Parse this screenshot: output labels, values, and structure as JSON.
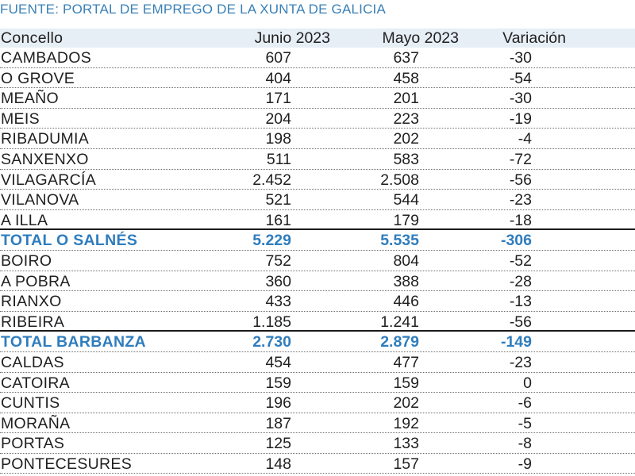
{
  "source": "FUENTE: PORTAL DE EMPREGO DE LA XUNTA DE GALICIA",
  "table": {
    "headers": {
      "name": "Concello",
      "jun": "Junio 2023",
      "may": "Mayo 2023",
      "var": "Variación"
    },
    "rows": [
      {
        "name": "CAMBADOS",
        "jun": "607",
        "may": "637",
        "var": "-30"
      },
      {
        "name": "O GROVE",
        "jun": "404",
        "may": "458",
        "var": "-54"
      },
      {
        "name": "MEAÑO",
        "jun": "171",
        "may": "201",
        "var": "-30"
      },
      {
        "name": "MEIS",
        "jun": "204",
        "may": "223",
        "var": "-19"
      },
      {
        "name": "RIBADUMIA",
        "jun": "198",
        "may": "202",
        "var": "-4"
      },
      {
        "name": "SANXENXO",
        "jun": "511",
        "may": "583",
        "var": "-72"
      },
      {
        "name": "VILAGARCÍA",
        "jun": "2.452",
        "may": "2.508",
        "var": "-56"
      },
      {
        "name": "VILANOVA",
        "jun": "521",
        "may": "544",
        "var": "-23"
      },
      {
        "name": "A ILLA",
        "jun": "161",
        "may": "179",
        "var": "-18"
      },
      {
        "name": "TOTAL O SALNÉS",
        "jun": "5.229",
        "may": "5.535",
        "var": "-306"
      },
      {
        "name": "BOIRO",
        "jun": "752",
        "may": "804",
        "var": "-52"
      },
      {
        "name": "A POBRA",
        "jun": "360",
        "may": "388",
        "var": "-28"
      },
      {
        "name": "RIANXO",
        "jun": "433",
        "may": "446",
        "var": "-13"
      },
      {
        "name": "RIBEIRA",
        "jun": "1.185",
        "may": "1.241",
        "var": "-56"
      },
      {
        "name": "TOTAL BARBANZA",
        "jun": "2.730",
        "may": "2.879",
        "var": "-149"
      },
      {
        "name": "CALDAS",
        "jun": "454",
        "may": "477",
        "var": "-23"
      },
      {
        "name": "CATOIRA",
        "jun": "159",
        "may": "159",
        "var": "0"
      },
      {
        "name": "CUNTIS",
        "jun": "196",
        "may": "202",
        "var": "-6"
      },
      {
        "name": "MORAÑA",
        "jun": "187",
        "may": "192",
        "var": "-5"
      },
      {
        "name": "PORTAS",
        "jun": "125",
        "may": "133",
        "var": "-8"
      },
      {
        "name": "PONTECESURES",
        "jun": "148",
        "may": "157",
        "var": "-9"
      }
    ]
  }
}
